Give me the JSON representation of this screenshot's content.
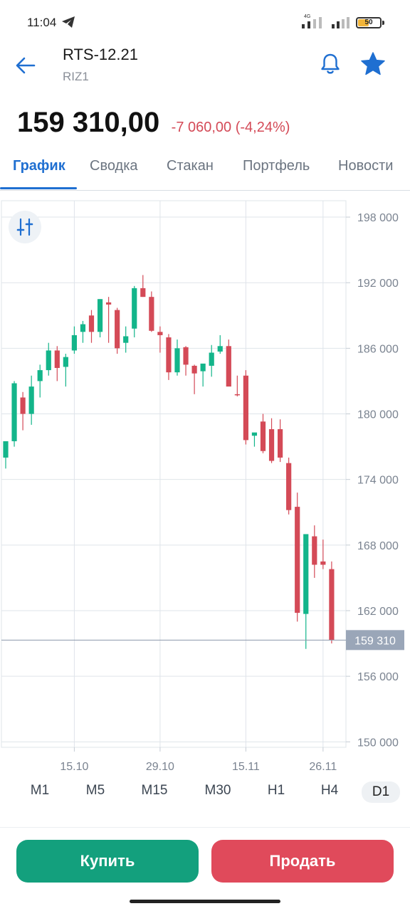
{
  "status_bar": {
    "time": "11:04",
    "network": "4G",
    "battery": "50",
    "battery_level_percent": 50,
    "icons": [
      "telegram-icon",
      "signal-icon",
      "signal-icon",
      "battery-icon"
    ]
  },
  "header": {
    "title": "RTS-12.21",
    "subtitle": "RIZ1",
    "icons": [
      "back-arrow-icon",
      "bell-icon",
      "star-icon"
    ]
  },
  "quote": {
    "price": "159 310,00",
    "change": "-7 060,00 (-4,24%)"
  },
  "tabs": [
    {
      "label": "График",
      "active": true
    },
    {
      "label": "Сводка",
      "active": false
    },
    {
      "label": "Стакан",
      "active": false
    },
    {
      "label": "Портфель",
      "active": false
    },
    {
      "label": "Новости",
      "active": false
    }
  ],
  "colors": {
    "accent": "#1f6fd1",
    "up": "#13b58a",
    "down": "#d44a57",
    "buy": "#13a07d",
    "sell": "#e04a5b",
    "current_price_tag": "#9aa6b8"
  },
  "chart_data": {
    "type": "candlestick",
    "y_labels": [
      "198 000",
      "192 000",
      "186 000",
      "180 000",
      "174 000",
      "168 000",
      "162 000",
      "156 000",
      "150 000"
    ],
    "y_values": [
      198000,
      192000,
      186000,
      180000,
      174000,
      168000,
      162000,
      156000,
      150000
    ],
    "x_labels": [
      "15.10",
      "29.10",
      "15.11",
      "26.11"
    ],
    "x_label_index": [
      8,
      18,
      28,
      37
    ],
    "current_price": 159310,
    "current_price_label": "159 310",
    "ylim": [
      149500,
      199500
    ],
    "candles": [
      {
        "o": 176000,
        "h": 177000,
        "l": 175000,
        "c": 177500
      },
      {
        "o": 177500,
        "h": 183000,
        "l": 177000,
        "c": 182800
      },
      {
        "o": 181500,
        "h": 182000,
        "l": 178500,
        "c": 180000
      },
      {
        "o": 180000,
        "h": 183500,
        "l": 179000,
        "c": 182500
      },
      {
        "o": 183000,
        "h": 184500,
        "l": 181500,
        "c": 184000
      },
      {
        "o": 184000,
        "h": 186500,
        "l": 183500,
        "c": 185800
      },
      {
        "o": 185800,
        "h": 186200,
        "l": 183000,
        "c": 184200
      },
      {
        "o": 184300,
        "h": 185500,
        "l": 182500,
        "c": 185200
      },
      {
        "o": 185800,
        "h": 188000,
        "l": 185500,
        "c": 187200
      },
      {
        "o": 187500,
        "h": 188500,
        "l": 186500,
        "c": 188200
      },
      {
        "o": 189000,
        "h": 189500,
        "l": 186500,
        "c": 187500
      },
      {
        "o": 187500,
        "h": 190500,
        "l": 187000,
        "c": 190500
      },
      {
        "o": 190200,
        "h": 190700,
        "l": 186500,
        "c": 190000
      },
      {
        "o": 189500,
        "h": 189700,
        "l": 185500,
        "c": 186000
      },
      {
        "o": 186500,
        "h": 188000,
        "l": 185600,
        "c": 187100
      },
      {
        "o": 187800,
        "h": 191700,
        "l": 187000,
        "c": 191500
      },
      {
        "o": 191500,
        "h": 192700,
        "l": 190700,
        "c": 190700
      },
      {
        "o": 190700,
        "h": 191200,
        "l": 187500,
        "c": 187600
      },
      {
        "o": 187500,
        "h": 188000,
        "l": 185600,
        "c": 187200
      },
      {
        "o": 187000,
        "h": 187300,
        "l": 183100,
        "c": 183800
      },
      {
        "o": 183800,
        "h": 186800,
        "l": 183500,
        "c": 186000
      },
      {
        "o": 186100,
        "h": 186200,
        "l": 183500,
        "c": 184500
      },
      {
        "o": 184400,
        "h": 184500,
        "l": 181800,
        "c": 183700
      },
      {
        "o": 183900,
        "h": 184500,
        "l": 182500,
        "c": 184600
      },
      {
        "o": 184400,
        "h": 186300,
        "l": 183400,
        "c": 185600
      },
      {
        "o": 185700,
        "h": 187200,
        "l": 185500,
        "c": 186200
      },
      {
        "o": 186200,
        "h": 186800,
        "l": 182800,
        "c": 182500
      },
      {
        "o": 181800,
        "h": 183500,
        "l": 181600,
        "c": 181700
      },
      {
        "o": 183500,
        "h": 184000,
        "l": 177200,
        "c": 177600
      },
      {
        "o": 178000,
        "h": 178200,
        "l": 177000,
        "c": 178300
      },
      {
        "o": 179300,
        "h": 180000,
        "l": 176400,
        "c": 176600
      },
      {
        "o": 178600,
        "h": 179600,
        "l": 175500,
        "c": 175700
      },
      {
        "o": 178600,
        "h": 179500,
        "l": 175600,
        "c": 176000
      },
      {
        "o": 175500,
        "h": 176000,
        "l": 170800,
        "c": 171200
      },
      {
        "o": 171500,
        "h": 172800,
        "l": 161000,
        "c": 161800
      },
      {
        "o": 161700,
        "h": 169000,
        "l": 158500,
        "c": 169000
      },
      {
        "o": 168800,
        "h": 169800,
        "l": 165000,
        "c": 166200
      },
      {
        "o": 166500,
        "h": 168500,
        "l": 165800,
        "c": 166200
      },
      {
        "o": 165800,
        "h": 166500,
        "l": 159000,
        "c": 159300
      }
    ]
  },
  "indicator_button": {
    "icon": "indicator-settings-icon"
  },
  "timeframes": [
    {
      "label": "M1",
      "active": false
    },
    {
      "label": "M5",
      "active": false
    },
    {
      "label": "M15",
      "active": false
    },
    {
      "label": "M30",
      "active": false
    },
    {
      "label": "H1",
      "active": false
    },
    {
      "label": "H4",
      "active": false
    },
    {
      "label": "D1",
      "active": true
    }
  ],
  "actions": {
    "buy_label": "Купить",
    "sell_label": "Продать"
  }
}
